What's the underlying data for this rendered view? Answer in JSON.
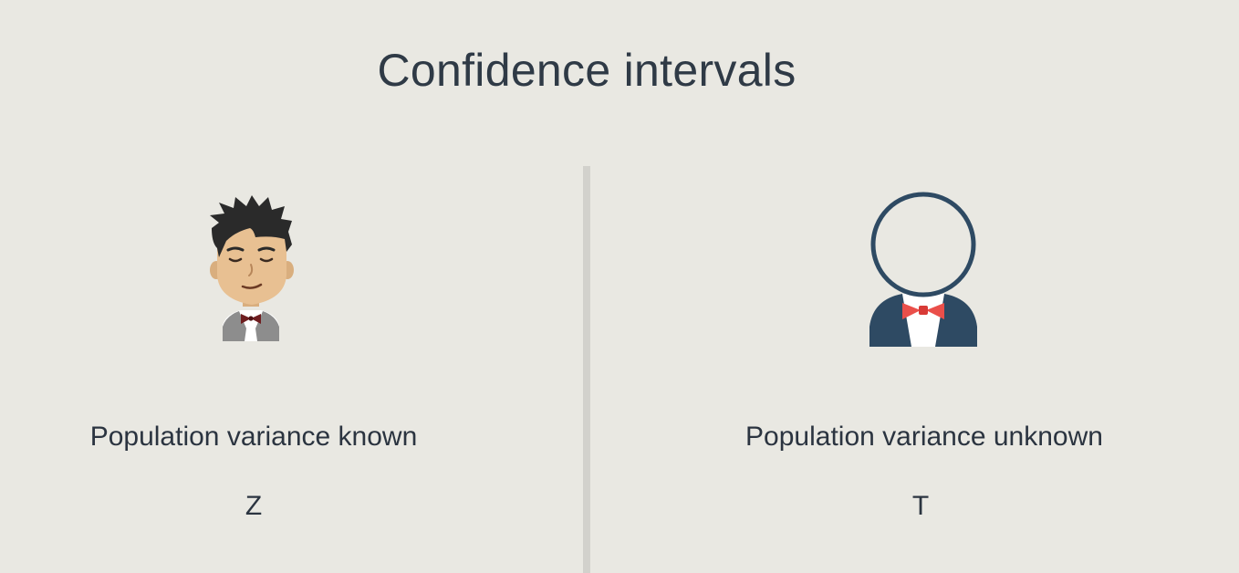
{
  "title": "Confidence intervals",
  "left": {
    "label": "Population variance known",
    "stat": "Z",
    "icon": "person-known-icon"
  },
  "right": {
    "label": "Population variance unknown",
    "stat": "T",
    "icon": "person-unknown-icon"
  },
  "colors": {
    "background": "#e9e8e2",
    "text": "#2b3440",
    "divider": "#d2d1cc",
    "navy": "#2e4a63",
    "bowtie_red": "#ea4f4a",
    "bowtie_dark": "#7a1f22"
  }
}
